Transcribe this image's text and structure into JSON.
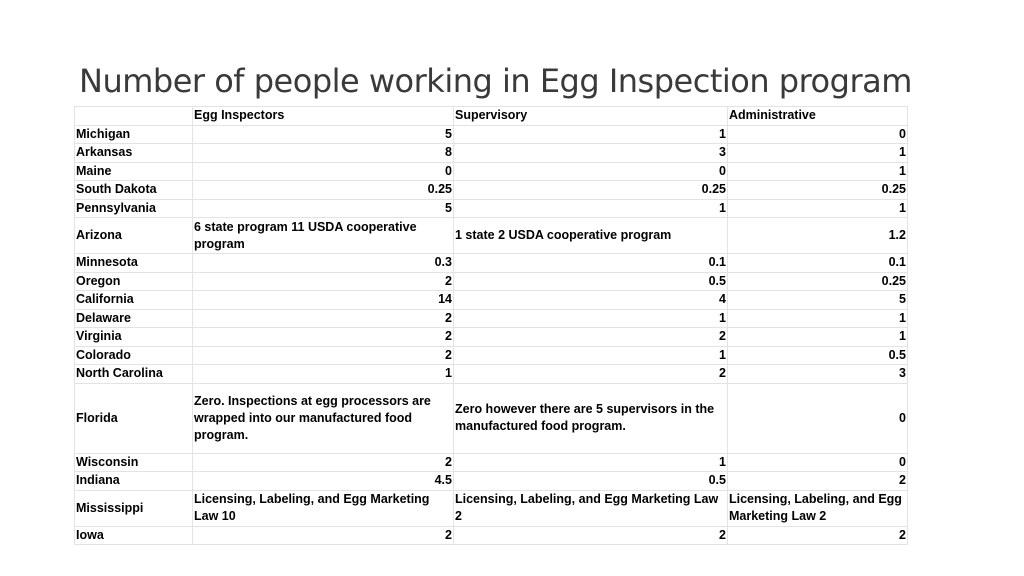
{
  "title": "Number of people working in Egg Inspection program",
  "headers": [
    "",
    "Egg Inspectors",
    "Supervisory",
    "Administrative"
  ],
  "rows": [
    {
      "state": "Michigan",
      "inspectors": "5",
      "supervisory": "1",
      "administrative": "0"
    },
    {
      "state": "Arkansas",
      "inspectors": "8",
      "supervisory": "3",
      "administrative": "1"
    },
    {
      "state": "Maine",
      "inspectors": "0",
      "supervisory": "0",
      "administrative": "1"
    },
    {
      "state": "South Dakota",
      "inspectors": "0.25",
      "supervisory": "0.25",
      "administrative": "0.25"
    },
    {
      "state": "Pennsylvania",
      "inspectors": "5",
      "supervisory": "1",
      "administrative": "1"
    },
    {
      "state": "Arizona",
      "inspectors": "6 state program 11 USDA cooperative program",
      "supervisory": "1 state 2 USDA cooperative program",
      "administrative": "1.2"
    },
    {
      "state": "Minnesota",
      "inspectors": "0.3",
      "supervisory": "0.1",
      "administrative": "0.1"
    },
    {
      "state": "Oregon",
      "inspectors": "2",
      "supervisory": "0.5",
      "administrative": "0.25"
    },
    {
      "state": "California",
      "inspectors": "14",
      "supervisory": "4",
      "administrative": "5"
    },
    {
      "state": "Delaware",
      "inspectors": "2",
      "supervisory": "1",
      "administrative": "1"
    },
    {
      "state": "Virginia",
      "inspectors": "2",
      "supervisory": "2",
      "administrative": "1"
    },
    {
      "state": "Colorado",
      "inspectors": "2",
      "supervisory": "1",
      "administrative": "0.5"
    },
    {
      "state": "North Carolina",
      "inspectors": "1",
      "supervisory": "2",
      "administrative": "3"
    },
    {
      "state": "Florida",
      "inspectors": "Zero. Inspections at egg processors are wrapped into our manufactured food program.",
      "supervisory": "Zero however there are 5 supervisors in the manufactured food program.",
      "administrative": "0"
    },
    {
      "state": "Wisconsin",
      "inspectors": "2",
      "supervisory": "1",
      "administrative": "0"
    },
    {
      "state": "Indiana",
      "inspectors": "4.5",
      "supervisory": "0.5",
      "administrative": "2"
    },
    {
      "state": "Mississippi",
      "inspectors": "Licensing, Labeling, and Egg Marketing Law 10",
      "supervisory": "Licensing, Labeling, and Egg Marketing Law 2",
      "administrative": "Licensing, Labeling, and Egg Marketing Law 2"
    },
    {
      "state": "Iowa",
      "inspectors": "2",
      "supervisory": "2",
      "administrative": "2"
    }
  ]
}
